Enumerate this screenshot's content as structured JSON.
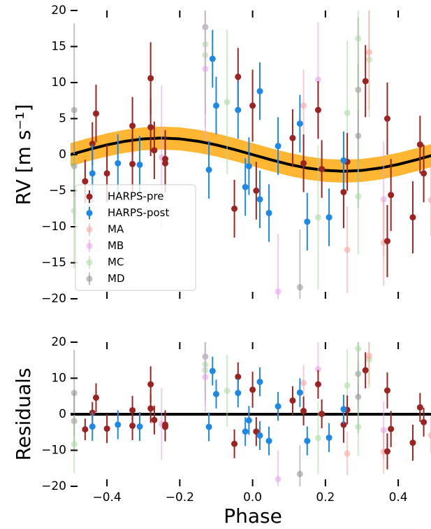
{
  "chart_data": [
    {
      "type": "scatter",
      "ylabel": "RV [m s⁻¹]",
      "xlim": [
        -0.5,
        0.49
      ],
      "ylim": [
        -20,
        20
      ],
      "xticks": [
        -0.4,
        -0.2,
        0,
        0.2,
        0.4
      ],
      "yticks": [
        {
          "value": -20,
          "label": "−20"
        },
        {
          "value": -15,
          "label": "−15"
        },
        {
          "value": -10,
          "label": "−10"
        },
        {
          "value": -5,
          "label": "−5"
        },
        0,
        5,
        10,
        15,
        20
      ],
      "legend": "lower left",
      "model": {
        "color": "#000000",
        "band_color": "#ffa500",
        "uncertainty": 1.6,
        "x": [
          -0.5,
          -0.45,
          -0.4,
          -0.35,
          -0.3,
          -0.25,
          -0.2,
          -0.15,
          -0.1,
          -0.05,
          0,
          0.05,
          0.1,
          0.15,
          0.2,
          0.25,
          0.3,
          0.35,
          0.4,
          0.45,
          0.5
        ],
        "values": [
          0,
          0.71,
          1.35,
          1.86,
          2.19,
          2.3,
          2.19,
          1.86,
          1.35,
          0.71,
          0,
          -0.71,
          -1.35,
          -1.86,
          -2.19,
          -2.3,
          -2.19,
          -1.86,
          -1.35,
          -0.71,
          0
        ]
      },
      "series": [
        {
          "name": "HARPS-pre",
          "color": "#9b2423",
          "x": [
            -0.46,
            -0.44,
            -0.43,
            -0.4,
            -0.33,
            -0.33,
            -0.28,
            -0.28,
            -0.27,
            -0.24,
            -0.24,
            -0.05,
            -0.04,
            0,
            0.01,
            0.11,
            0.14,
            0.18,
            0.19,
            0.25,
            0.26,
            0.31,
            0.37,
            0.37,
            0.38,
            0.44,
            0.46,
            0.47
          ],
          "values": [
            -3.7,
            1.5,
            5.7,
            -2.6,
            -1.3,
            4,
            3.8,
            10.6,
            0.6,
            -1.2,
            -0.6,
            -7.5,
            10.8,
            6.8,
            -5,
            2.3,
            -1.2,
            6.2,
            -2,
            -5.2,
            -1,
            10.2,
            5,
            -12,
            -5.6,
            -8.7,
            1.4,
            -2.6
          ],
          "errors": [
            3,
            3,
            4,
            4,
            4,
            4,
            4,
            5,
            4,
            4,
            4,
            4,
            4,
            5,
            4,
            4,
            4,
            4,
            4,
            5,
            4,
            5,
            5,
            5,
            5,
            5,
            4,
            4
          ]
        },
        {
          "name": "HARPS-post",
          "color": "#1e88e5",
          "x": [
            -0.44,
            -0.37,
            -0.31,
            -0.12,
            -0.11,
            -0.1,
            -0.04,
            -0.02,
            -0.01,
            0.02,
            0.02,
            0.045,
            0.07,
            0.13,
            0.15,
            0.21,
            0.25
          ],
          "values": [
            -2.6,
            -1.2,
            -1.4,
            -2.1,
            13.3,
            6.8,
            6.2,
            -4.5,
            -1.6,
            8.8,
            -6.2,
            -8.1,
            1.2,
            4.3,
            -9.3,
            -8.7,
            -0.8
          ],
          "errors": [
            4,
            4,
            4,
            4,
            4,
            4,
            4,
            4,
            4,
            4,
            4,
            4,
            4,
            4,
            4,
            4,
            4
          ]
        },
        {
          "name": "MA",
          "color": "#f4a09a",
          "x": [
            0.14,
            0.26,
            0.32,
            0.36,
            0.49
          ],
          "values": [
            6.8,
            -13.2,
            14.2,
            -12.2,
            -6.3
          ],
          "errors": [
            5,
            6,
            8,
            6,
            5
          ]
        },
        {
          "name": "MB",
          "color": "#e69ee6",
          "x": [
            -0.25,
            -0.13,
            0.07,
            0.18,
            0.36
          ],
          "values": [
            -0.4,
            11.9,
            -19,
            10.4,
            -6.2
          ],
          "errors": [
            10,
            10,
            8,
            8,
            8
          ]
        },
        {
          "name": "MC",
          "color": "#a8d8a0",
          "x": [
            -0.49,
            -0.13,
            -0.13,
            -0.07,
            0.18,
            0.26,
            0.29,
            0.29,
            0.32
          ],
          "values": [
            -7.8,
            13.8,
            15.3,
            7.3,
            -8.7,
            5.8,
            16.1,
            -5.8,
            13.2
          ],
          "errors": [
            8,
            10,
            8,
            10,
            10,
            10,
            10,
            8,
            8
          ]
        },
        {
          "name": "MD",
          "color": "#909090",
          "x": [
            -0.49,
            -0.49,
            -0.13,
            0.13,
            0.29,
            0.29
          ],
          "values": [
            6.2,
            -1.6,
            17.7,
            -18.4,
            9,
            2.6
          ],
          "errors": [
            12,
            8,
            12,
            8,
            10,
            10
          ]
        }
      ]
    },
    {
      "type": "scatter",
      "xlabel": "Phase",
      "ylabel": "Residuals",
      "xlim": [
        -0.5,
        0.49
      ],
      "ylim": [
        -20,
        20
      ],
      "xticks": [
        {
          "value": -0.4,
          "label": "−0.4"
        },
        {
          "value": -0.2,
          "label": "−0.2"
        },
        {
          "value": 0,
          "label": "0.0"
        },
        {
          "value": 0.2,
          "label": "0.2"
        },
        {
          "value": 0.4,
          "label": "0.4"
        }
      ],
      "yticks": [
        {
          "value": -20,
          "label": "−20"
        },
        {
          "value": -10,
          "label": "−10"
        },
        0,
        10,
        20
      ],
      "hline": 0,
      "series": [
        {
          "color": "#9b2423",
          "x": [
            -0.46,
            -0.44,
            -0.43,
            -0.4,
            -0.33,
            -0.33,
            -0.28,
            -0.28,
            -0.27,
            -0.24,
            -0.24,
            -0.05,
            -0.04,
            0,
            0.01,
            0.11,
            0.14,
            0.18,
            0.19,
            0.25,
            0.26,
            0.31,
            0.37,
            0.37,
            0.38,
            0.44,
            0.46,
            0.47
          ],
          "values": [
            -4.2,
            0.4,
            4.6,
            -4,
            -3.2,
            1.1,
            1.6,
            8.3,
            -1.6,
            -3.5,
            -2.9,
            -8.2,
            10.4,
            6.8,
            -4.8,
            3.8,
            0.9,
            8.3,
            0.1,
            -2.9,
            1.2,
            12.2,
            6.6,
            -10.3,
            -4.1,
            -7.9,
            1.9,
            -2.2
          ],
          "errors": [
            3,
            3,
            4,
            4,
            4,
            4,
            4,
            5,
            4,
            4,
            4,
            4,
            4,
            5,
            4,
            4,
            4,
            4,
            4,
            5,
            4,
            5,
            5,
            5,
            5,
            5,
            4,
            4
          ]
        },
        {
          "color": "#1e88e5",
          "x": [
            -0.44,
            -0.37,
            -0.31,
            -0.12,
            -0.11,
            -0.1,
            -0.04,
            -0.02,
            -0.01,
            0.02,
            0.02,
            0.045,
            0.07,
            0.13,
            0.15,
            0.21,
            0.25
          ],
          "values": [
            -3.4,
            -2.9,
            -3.4,
            -3.5,
            12,
            5.6,
            5.9,
            -4.8,
            -1.7,
            9,
            -5.9,
            -7.4,
            2.2,
            6,
            -7.4,
            -6.5,
            1.4
          ],
          "errors": [
            4,
            4,
            4,
            4,
            4,
            4,
            4,
            4,
            4,
            4,
            4,
            4,
            4,
            4,
            4,
            4,
            4
          ]
        },
        {
          "color": "#f4a09a",
          "x": [
            0.14,
            0.26,
            0.32,
            0.36,
            0.49
          ],
          "values": [
            8.7,
            -10.9,
            16.2,
            -10.4,
            -5.8
          ],
          "errors": [
            5,
            6,
            8,
            6,
            5
          ]
        },
        {
          "color": "#e69ee6",
          "x": [
            -0.25,
            -0.13,
            0.07,
            0.18,
            0.36
          ],
          "values": [
            -2.7,
            10.3,
            -18,
            12.5,
            -4.4
          ],
          "errors": [
            10,
            10,
            8,
            8,
            8
          ]
        },
        {
          "color": "#a8d8a0",
          "x": [
            -0.49,
            -0.13,
            -0.13,
            -0.07,
            0.18,
            0.26,
            0.29,
            0.29,
            0.32
          ],
          "values": [
            -8.3,
            12.2,
            13.8,
            6.5,
            -6.6,
            8,
            18.2,
            -3.5,
            15.2
          ],
          "errors": [
            8,
            10,
            8,
            10,
            10,
            10,
            10,
            8,
            8
          ]
        },
        {
          "color": "#909090",
          "x": [
            -0.49,
            -0.49,
            -0.13,
            0.13,
            0.29,
            0.29
          ],
          "values": [
            5.9,
            -1.9,
            16,
            -16.6,
            11.2,
            4.8
          ],
          "errors": [
            12,
            8,
            12,
            8,
            10,
            10
          ]
        }
      ]
    }
  ]
}
